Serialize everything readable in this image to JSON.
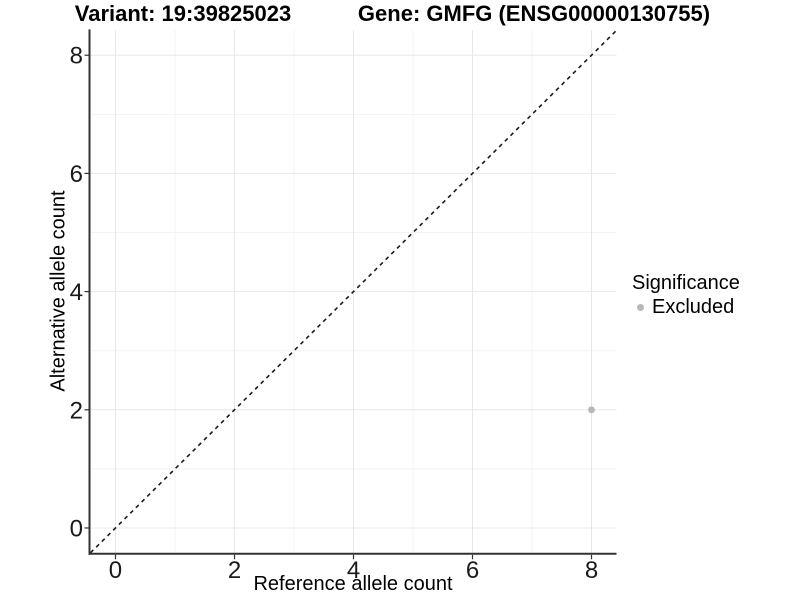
{
  "chart_data": {
    "type": "scatter",
    "title_left": "Variant: 19:39825023",
    "title_right": "Gene: GMFG (ENSG00000130755)",
    "xlabel": "Reference allele count",
    "ylabel": "Alternative allele count",
    "xlim": [
      -0.42,
      8.42
    ],
    "ylim": [
      -0.42,
      8.42
    ],
    "x_ticks": [
      0,
      2,
      4,
      6,
      8
    ],
    "y_ticks": [
      0,
      2,
      4,
      6,
      8
    ],
    "x_minor_ticks": [
      1,
      3,
      5,
      7
    ],
    "y_minor_ticks": [
      1,
      3,
      5,
      7
    ],
    "grid": true,
    "points": [
      {
        "x": 8,
        "y": 2,
        "significance": "Excluded"
      }
    ],
    "identity_line": {
      "slope": 1,
      "intercept": 0,
      "style": "dashed"
    },
    "legend": {
      "title": "Significance",
      "position": "right",
      "entries": [
        {
          "label": "Excluded",
          "color": "#b8b8b8"
        }
      ]
    },
    "colors": {
      "point": "#b8b8b8",
      "grid_major": "#e8e8e8",
      "grid_minor": "#f3f3f3",
      "axis_line": "#333333",
      "tick_mark": "#333333",
      "tick_text": "#1a1a1a",
      "identity_line": "#1a1a1a",
      "background": "#ffffff"
    }
  }
}
